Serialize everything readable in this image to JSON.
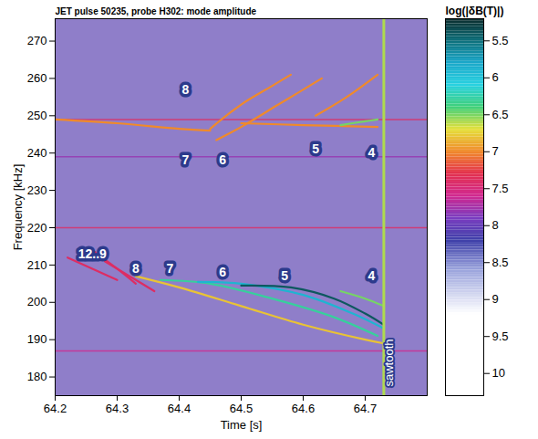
{
  "chart_data": {
    "type": "heatmap",
    "title": "JET pulse 50235, probe H302: mode amplitude",
    "x_label": "Time [s]",
    "y_label": "Frequency [kHz]",
    "xlim": [
      64.2,
      64.8
    ],
    "xticks": [
      64.2,
      64.3,
      64.4,
      64.5,
      64.6,
      64.7
    ],
    "ylim": [
      175,
      276
    ],
    "yticks": [
      180,
      190,
      200,
      210,
      220,
      230,
      240,
      250,
      260,
      270
    ],
    "series": [
      {
        "x": [
          64.22,
          64.26,
          64.3
        ],
        "values": [
          212,
          209,
          206
        ],
        "level": 7.4
      },
      {
        "x": [
          64.26,
          64.3,
          64.33
        ],
        "values": [
          214,
          209,
          205
        ],
        "level": 7.4
      },
      {
        "x": [
          64.28,
          64.32,
          64.36
        ],
        "values": [
          211,
          207,
          203
        ],
        "level": 7.4
      },
      {
        "x": [
          64.33,
          64.4,
          64.5,
          64.6,
          64.7,
          64.73
        ],
        "values": [
          207,
          204,
          199,
          194,
          190,
          189
        ],
        "level": 6.8
      },
      {
        "x": [
          64.37,
          64.45,
          64.55,
          64.65,
          64.72
        ],
        "values": [
          206,
          205,
          201,
          196,
          191
        ],
        "level": 6.3
      },
      {
        "x": [
          64.43,
          64.5,
          64.6,
          64.68,
          64.73
        ],
        "values": [
          205.5,
          205,
          202,
          197,
          193
        ],
        "level": 5.9
      },
      {
        "x": [
          64.5,
          64.58,
          64.65,
          64.7,
          64.73
        ],
        "values": [
          204.5,
          204,
          201,
          197,
          194
        ],
        "level": 5.4
      },
      {
        "x": [
          64.66,
          64.7,
          64.73
        ],
        "values": [
          203,
          201,
          199
        ],
        "level": 6.5
      },
      {
        "x": [
          64.2,
          64.3,
          64.4,
          64.45
        ],
        "values": [
          249,
          248,
          246.5,
          246
        ],
        "level": 7.0
      },
      {
        "x": [
          64.45,
          64.5,
          64.55,
          64.58
        ],
        "values": [
          246.5,
          253,
          258,
          261
        ],
        "level": 7.0
      },
      {
        "x": [
          64.46,
          64.5,
          64.56,
          64.63
        ],
        "values": [
          243.5,
          247,
          253,
          260
        ],
        "level": 7.0
      },
      {
        "x": [
          64.5,
          64.6,
          64.72
        ],
        "values": [
          248,
          247.5,
          247
        ],
        "level": 7.0
      },
      {
        "x": [
          64.62,
          64.67,
          64.72
        ],
        "values": [
          250,
          255,
          261
        ],
        "level": 7.0
      },
      {
        "x": [
          64.66,
          64.7,
          64.72
        ],
        "values": [
          247.5,
          248.5,
          249
        ],
        "level": 6.5
      }
    ],
    "bands": [
      {
        "y": 249,
        "level": 7.4
      },
      {
        "y": 239,
        "level": 7.8
      },
      {
        "y": 220,
        "level": 7.4
      },
      {
        "y": 187,
        "level": 7.6
      }
    ],
    "events": [
      {
        "x": 64.73,
        "level": 6.6,
        "label": "sawtooth"
      }
    ],
    "annotations": [
      {
        "text": "8",
        "x": 64.41,
        "y": 257
      },
      {
        "text": "7",
        "x": 64.41,
        "y": 238
      },
      {
        "text": "6",
        "x": 64.47,
        "y": 238
      },
      {
        "text": "5",
        "x": 64.62,
        "y": 241
      },
      {
        "text": "4",
        "x": 64.71,
        "y": 240
      },
      {
        "text": "12..9",
        "x": 64.26,
        "y": 213
      },
      {
        "text": "8",
        "x": 64.33,
        "y": 209
      },
      {
        "text": "7",
        "x": 64.385,
        "y": 209
      },
      {
        "text": "6",
        "x": 64.47,
        "y": 208
      },
      {
        "text": "5",
        "x": 64.57,
        "y": 207
      },
      {
        "text": "4",
        "x": 64.71,
        "y": 207
      }
    ],
    "colorbar": {
      "label": "log(|δB(T)|)",
      "range": [
        5.2,
        10.3
      ],
      "ticks": [
        5.5,
        6,
        6.5,
        7,
        7.5,
        8,
        8.5,
        9,
        9.5,
        10
      ],
      "stops": [
        5.2,
        5.5,
        5.8,
        6.1,
        6.4,
        6.7,
        7.0,
        7.3,
        7.6,
        7.9,
        8.2,
        8.6,
        9.2,
        10.3
      ],
      "colors": [
        "#0a2a2a",
        "#0e6f7a",
        "#1aa7c9",
        "#27d1e0",
        "#3fd07a",
        "#e5e03a",
        "#f08a2a",
        "#e3304d",
        "#d1288f",
        "#7a3cc0",
        "#3e3fa8",
        "#9aa3dc",
        "#ffffff",
        "#ffffff"
      ]
    }
  }
}
